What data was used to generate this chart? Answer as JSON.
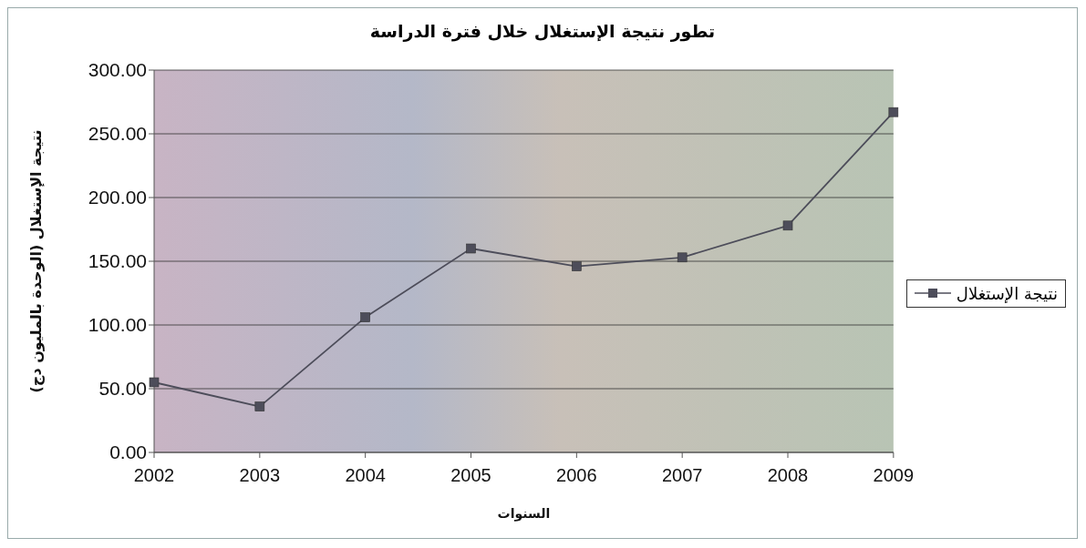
{
  "chart_data": {
    "type": "line",
    "title": "تطور نتيجة الإستغلال خلال فترة الدراسة",
    "xlabel": "السنوات",
    "ylabel": "نتيجة الإستغلال (الوحدة بالمليون دج)",
    "categories": [
      "2002",
      "2003",
      "2004",
      "2005",
      "2006",
      "2007",
      "2008",
      "2009"
    ],
    "series": [
      {
        "name": "نتيجة الإستغلال",
        "color": "#4d4d5a",
        "values": [
          55,
          36,
          106,
          160,
          146,
          153,
          178,
          267
        ]
      }
    ],
    "ylim": [
      0,
      300
    ],
    "yticks": [
      {
        "value": 0,
        "label": "0.00"
      },
      {
        "value": 50,
        "label": "50.00"
      },
      {
        "value": 100,
        "label": "100.00"
      },
      {
        "value": 150,
        "label": "150.00"
      },
      {
        "value": 200,
        "label": "200.00"
      },
      {
        "value": 250,
        "label": "250.00"
      },
      {
        "value": 300,
        "label": "300.00"
      }
    ],
    "grid": "y",
    "legend": "right",
    "marker": "square",
    "line_style": "solid"
  }
}
